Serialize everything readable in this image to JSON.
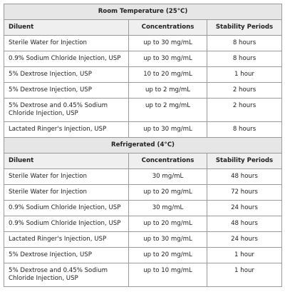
{
  "sections": [
    {
      "title": "Room Temperature (25°C)",
      "header": [
        "Diluent",
        "Concentrations",
        "Stability Periods"
      ],
      "rows": [
        [
          "Sterile Water for Injection",
          "up to 30 mg/mL",
          "8 hours"
        ],
        [
          "0.9% Sodium Chloride Injection, USP",
          "up to 30 mg/mL",
          "8 hours"
        ],
        [
          "5% Dextrose Injection, USP",
          "10 to 20 mg/mL",
          "1 hour"
        ],
        [
          "5% Dextrose Injection, USP",
          "up to 2 mg/mL",
          "2 hours"
        ],
        [
          "5% Dextrose and 0.45% Sodium Chloride Injection, USP",
          "up to 2 mg/mL",
          "2 hours"
        ],
        [
          "Lactated Ringer's Injection, USP",
          "up to 30 mg/mL",
          "8 hours"
        ]
      ]
    },
    {
      "title": "Refrigerated (4°C)",
      "header": [
        "Diluent",
        "Concentrations",
        "Stability Periods"
      ],
      "rows": [
        [
          "Sterile Water for Injection",
          "30 mg/mL",
          "48 hours"
        ],
        [
          "Sterile Water for Injection",
          "up to 20 mg/mL",
          "72 hours"
        ],
        [
          "0.9% Sodium Chloride Injection, USP",
          "30 mg/mL",
          "24 hours"
        ],
        [
          "0.9% Sodium Chloride Injection, USP",
          "up to 20 mg/mL",
          "48 hours"
        ],
        [
          "Lactated Ringer's Injection, USP",
          "up to 30 mg/mL",
          "24 hours"
        ],
        [
          "5% Dextrose Injection, USP",
          "up to 20 mg/mL",
          "1 hour"
        ],
        [
          "5% Dextrose and 0.45% Sodium Chloride Injection, USP",
          "up to 10 mg/mL",
          "1 hour"
        ]
      ]
    }
  ]
}
